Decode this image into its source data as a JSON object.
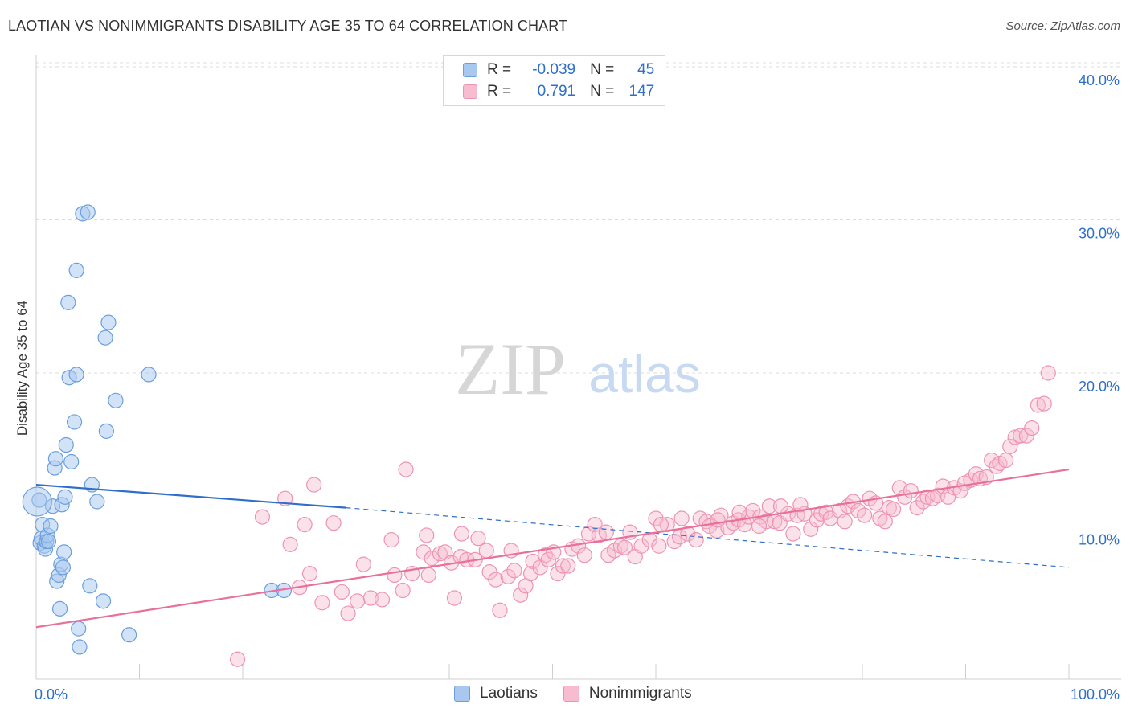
{
  "title": "LAOTIAN VS NONIMMIGRANTS DISABILITY AGE 35 TO 64 CORRELATION CHART",
  "source": "Source: ZipAtlas.com",
  "watermark": {
    "zip": "ZIP",
    "atlas": "atlas"
  },
  "legend": {
    "rows": [
      {
        "r_label": "R =",
        "r_value": "-0.039",
        "n_label": "N =",
        "n_value": "45"
      },
      {
        "r_label": "R =",
        "r_value": "0.791",
        "n_label": "N =",
        "n_value": "147"
      }
    ]
  },
  "bottom_legend": [
    "Laotians",
    "Nonimmigrants"
  ],
  "colors": {
    "laotians_fill": "#a8c8f0",
    "laotians_stroke": "#6a9fdc",
    "laotians_line": "#2f6fca",
    "nonimmigrants_fill": "#f7bcd0",
    "nonimmigrants_stroke": "#ee93b2",
    "nonimmigrants_line": "#e8709b",
    "tick_text": "#2f6fca"
  },
  "chart_data": {
    "type": "scatter",
    "title": "LAOTIAN VS NONIMMIGRANTS DISABILITY AGE 35 TO 64 CORRELATION CHART",
    "xlabel": "",
    "ylabel": "Disability Age 35 to 64",
    "xlim": [
      0,
      100
    ],
    "ylim": [
      0,
      42
    ],
    "x_tick_labels": [
      "0.0%",
      "100.0%"
    ],
    "y_ticks": [
      10,
      20,
      30,
      40
    ],
    "y_tick_labels": [
      "10.0%",
      "20.0%",
      "30.0%",
      "40.0%"
    ],
    "grid": "horizontal dashed",
    "series": [
      {
        "name": "Laotians",
        "r": -0.039,
        "n": 45,
        "trend": {
          "x0": 0,
          "y0": 12.7,
          "x1": 30,
          "y1": 11.2,
          "dash_to_x": 100,
          "dash_to_y": 7.3
        },
        "points": [
          [
            0.3,
            11.7
          ],
          [
            0.4,
            8.9
          ],
          [
            0.5,
            9.2
          ],
          [
            0.6,
            10.1
          ],
          [
            0.8,
            8.7
          ],
          [
            0.9,
            8.5
          ],
          [
            1.0,
            9.0
          ],
          [
            1.1,
            9.4
          ],
          [
            1.2,
            9.0
          ],
          [
            1.4,
            10.0
          ],
          [
            1.6,
            11.3
          ],
          [
            1.8,
            13.8
          ],
          [
            1.9,
            14.4
          ],
          [
            2.0,
            6.4
          ],
          [
            2.2,
            6.8
          ],
          [
            2.3,
            4.6
          ],
          [
            2.4,
            7.5
          ],
          [
            2.5,
            11.4
          ],
          [
            2.6,
            7.3
          ],
          [
            2.7,
            8.3
          ],
          [
            2.8,
            11.9
          ],
          [
            2.9,
            15.3
          ],
          [
            3.1,
            24.6
          ],
          [
            3.2,
            19.7
          ],
          [
            3.4,
            14.2
          ],
          [
            3.7,
            16.8
          ],
          [
            3.9,
            26.7
          ],
          [
            3.9,
            19.9
          ],
          [
            4.1,
            3.3
          ],
          [
            4.2,
            2.1
          ],
          [
            4.5,
            30.4
          ],
          [
            5.0,
            30.5
          ],
          [
            5.2,
            6.1
          ],
          [
            5.4,
            12.7
          ],
          [
            5.9,
            11.6
          ],
          [
            6.5,
            5.1
          ],
          [
            6.7,
            22.3
          ],
          [
            6.8,
            16.2
          ],
          [
            7.0,
            23.3
          ],
          [
            7.7,
            18.2
          ],
          [
            9.0,
            2.9
          ],
          [
            10.9,
            19.9
          ],
          [
            22.8,
            5.8
          ],
          [
            24.0,
            5.8
          ],
          [
            0.1,
            11.6
          ]
        ]
      },
      {
        "name": "Nonimmigrants",
        "r": 0.791,
        "n": 147,
        "trend": {
          "x0": 0,
          "y0": 3.4,
          "x1": 100,
          "y1": 13.7
        },
        "points": [
          [
            19.5,
            1.3
          ],
          [
            21.9,
            10.6
          ],
          [
            24.1,
            11.8
          ],
          [
            24.6,
            8.8
          ],
          [
            25.5,
            6.0
          ],
          [
            26.0,
            10.1
          ],
          [
            26.5,
            6.9
          ],
          [
            26.9,
            12.7
          ],
          [
            27.7,
            5.0
          ],
          [
            28.8,
            10.2
          ],
          [
            29.6,
            5.7
          ],
          [
            30.2,
            4.3
          ],
          [
            31.1,
            5.1
          ],
          [
            31.7,
            7.5
          ],
          [
            32.4,
            5.3
          ],
          [
            33.5,
            5.2
          ],
          [
            34.4,
            9.1
          ],
          [
            34.7,
            6.8
          ],
          [
            35.5,
            5.8
          ],
          [
            35.8,
            13.7
          ],
          [
            36.4,
            6.9
          ],
          [
            37.5,
            8.3
          ],
          [
            37.8,
            9.4
          ],
          [
            38.0,
            6.8
          ],
          [
            38.3,
            7.9
          ],
          [
            39.1,
            8.2
          ],
          [
            39.6,
            8.3
          ],
          [
            40.2,
            7.6
          ],
          [
            40.5,
            5.3
          ],
          [
            41.1,
            8.0
          ],
          [
            41.2,
            9.5
          ],
          [
            41.7,
            7.8
          ],
          [
            42.5,
            7.8
          ],
          [
            42.8,
            9.2
          ],
          [
            43.6,
            8.4
          ],
          [
            43.9,
            7.0
          ],
          [
            44.5,
            6.5
          ],
          [
            44.9,
            4.5
          ],
          [
            45.7,
            6.7
          ],
          [
            46.0,
            8.4
          ],
          [
            46.3,
            7.1
          ],
          [
            46.9,
            5.5
          ],
          [
            47.4,
            6.1
          ],
          [
            47.9,
            6.9
          ],
          [
            48.1,
            7.7
          ],
          [
            48.8,
            7.3
          ],
          [
            49.3,
            8.1
          ],
          [
            49.6,
            7.8
          ],
          [
            50.1,
            8.3
          ],
          [
            50.5,
            6.9
          ],
          [
            51.0,
            7.4
          ],
          [
            51.5,
            7.4
          ],
          [
            51.9,
            8.5
          ],
          [
            52.5,
            8.7
          ],
          [
            53.1,
            8.1
          ],
          [
            53.5,
            9.5
          ],
          [
            54.1,
            10.1
          ],
          [
            54.5,
            9.4
          ],
          [
            55.2,
            9.6
          ],
          [
            55.4,
            8.1
          ],
          [
            56.0,
            8.4
          ],
          [
            56.6,
            8.7
          ],
          [
            57.0,
            8.6
          ],
          [
            57.5,
            9.6
          ],
          [
            58.0,
            8.0
          ],
          [
            58.6,
            8.7
          ],
          [
            59.4,
            9.1
          ],
          [
            60.0,
            10.5
          ],
          [
            60.3,
            8.7
          ],
          [
            61.1,
            10.1
          ],
          [
            61.8,
            9.0
          ],
          [
            62.3,
            9.3
          ],
          [
            62.5,
            10.5
          ],
          [
            63.1,
            9.5
          ],
          [
            63.9,
            9.1
          ],
          [
            64.3,
            10.5
          ],
          [
            64.9,
            10.3
          ],
          [
            65.2,
            10.0
          ],
          [
            65.9,
            9.7
          ],
          [
            66.3,
            10.7
          ],
          [
            67.0,
            9.9
          ],
          [
            67.5,
            10.2
          ],
          [
            68.0,
            10.4
          ],
          [
            68.6,
            10.1
          ],
          [
            69.0,
            10.6
          ],
          [
            69.4,
            11.0
          ],
          [
            70.1,
            10.6
          ],
          [
            70.7,
            10.3
          ],
          [
            71.0,
            11.3
          ],
          [
            71.5,
            10.3
          ],
          [
            72.0,
            10.2
          ],
          [
            72.8,
            10.8
          ],
          [
            73.3,
            9.5
          ],
          [
            73.7,
            10.7
          ],
          [
            74.4,
            10.8
          ],
          [
            75.0,
            9.8
          ],
          [
            75.6,
            10.4
          ],
          [
            76.0,
            10.8
          ],
          [
            76.5,
            10.9
          ],
          [
            76.9,
            10.5
          ],
          [
            77.8,
            11.0
          ],
          [
            78.3,
            10.3
          ],
          [
            78.6,
            11.3
          ],
          [
            79.1,
            11.6
          ],
          [
            79.6,
            11.0
          ],
          [
            80.2,
            10.7
          ],
          [
            80.7,
            11.8
          ],
          [
            81.3,
            11.5
          ],
          [
            81.7,
            10.5
          ],
          [
            82.2,
            10.3
          ],
          [
            82.6,
            11.2
          ],
          [
            83.0,
            11.1
          ],
          [
            83.6,
            12.5
          ],
          [
            84.1,
            11.9
          ],
          [
            84.7,
            12.3
          ],
          [
            85.3,
            11.2
          ],
          [
            85.9,
            11.6
          ],
          [
            86.3,
            11.9
          ],
          [
            86.8,
            11.8
          ],
          [
            87.3,
            12.0
          ],
          [
            87.8,
            12.6
          ],
          [
            88.3,
            11.9
          ],
          [
            88.9,
            12.5
          ],
          [
            89.5,
            12.3
          ],
          [
            89.9,
            12.8
          ],
          [
            90.5,
            13.0
          ],
          [
            91.0,
            13.4
          ],
          [
            91.4,
            13.1
          ],
          [
            92.0,
            13.2
          ],
          [
            92.5,
            14.3
          ],
          [
            93.0,
            13.9
          ],
          [
            93.3,
            14.1
          ],
          [
            93.9,
            14.3
          ],
          [
            94.3,
            15.2
          ],
          [
            94.8,
            15.8
          ],
          [
            95.3,
            15.9
          ],
          [
            95.9,
            15.9
          ],
          [
            96.4,
            16.4
          ],
          [
            97.0,
            17.9
          ],
          [
            97.6,
            18.0
          ],
          [
            98.0,
            20.0
          ],
          [
            60.5,
            10.1
          ],
          [
            66.0,
            10.4
          ],
          [
            68.1,
            10.9
          ],
          [
            70.0,
            10.0
          ],
          [
            72.1,
            11.3
          ],
          [
            74.0,
            11.4
          ]
        ]
      }
    ]
  }
}
